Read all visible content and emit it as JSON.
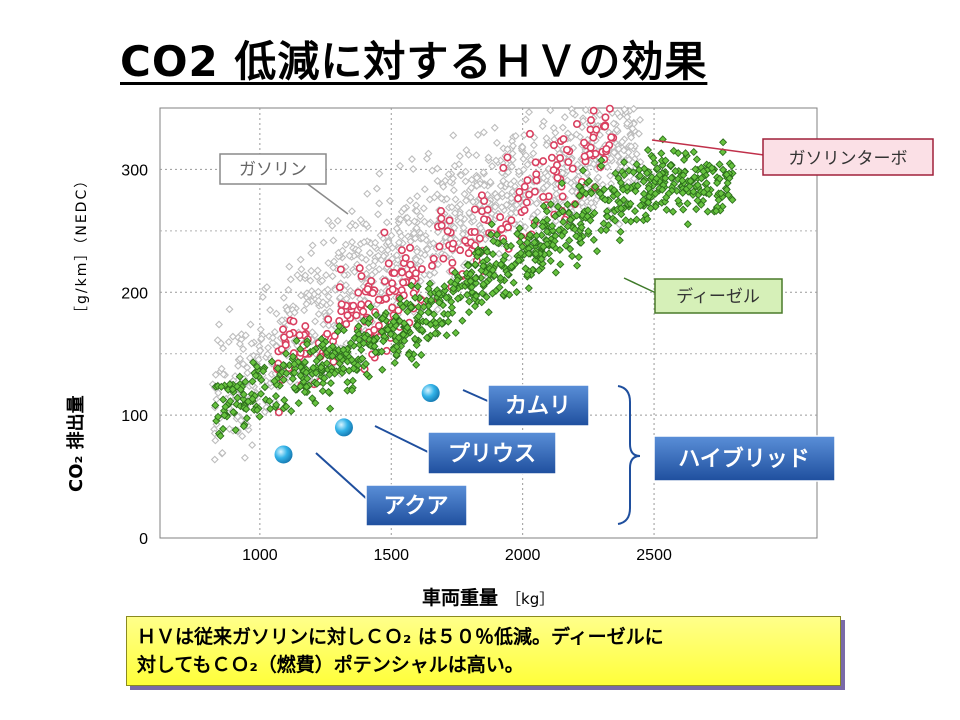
{
  "title": "CO2 低減に対するＨＶの効果",
  "note": {
    "line1": "ＨＶは従来ガソリンに対しＣＯ₂ は５０％低減。ディーゼルに",
    "line2": "対してもＣＯ₂（燃費）ポテンシャルは高い。"
  },
  "chart_data": {
    "type": "scatter",
    "xlabel": "車両重量",
    "xunit": "［kg］",
    "ylabel_prefix": "CO₂ 排出量",
    "ylabel_unit": "［g/km］（NEDC）",
    "xlim": [
      620,
      3120
    ],
    "ylim": [
      0,
      350
    ],
    "xticks": [
      "1000",
      "1500",
      "2000",
      "2500"
    ],
    "yticks": [
      "0",
      "100",
      "200",
      "300"
    ],
    "grid": true,
    "series_labels": {
      "gasoline": "ガソリン",
      "turbo": "ガソリンターボ",
      "diesel": "ディーゼル"
    },
    "series_colors": {
      "gasoline": "#c8c8c8",
      "turbo": "#e06a80",
      "diesel": "#3f9a2a",
      "hybrid": "#33b3e8"
    },
    "hybrids": [
      {
        "name": "アクア",
        "x": 1090,
        "y": 68
      },
      {
        "name": "プリウス",
        "x": 1320,
        "y": 90
      },
      {
        "name": "カムリ",
        "x": 1650,
        "y": 118
      }
    ],
    "hybrid_group_label": "ハイブリッド",
    "series": [
      {
        "name": "ガソリン",
        "trend": [
          [
            850,
            110
          ],
          [
            1100,
            160
          ],
          [
            1400,
            215
          ],
          [
            1700,
            255
          ],
          [
            2100,
            300
          ],
          [
            2400,
            330
          ]
        ]
      },
      {
        "name": "ガソリンターボ",
        "trend": [
          [
            1100,
            145
          ],
          [
            1400,
            185
          ],
          [
            1700,
            230
          ],
          [
            2000,
            275
          ],
          [
            2300,
            320
          ]
        ]
      },
      {
        "name": "ディーゼル",
        "trend": [
          [
            900,
            110
          ],
          [
            1200,
            135
          ],
          [
            1500,
            165
          ],
          [
            1800,
            205
          ],
          [
            2100,
            245
          ],
          [
            2500,
            290
          ]
        ]
      }
    ]
  }
}
